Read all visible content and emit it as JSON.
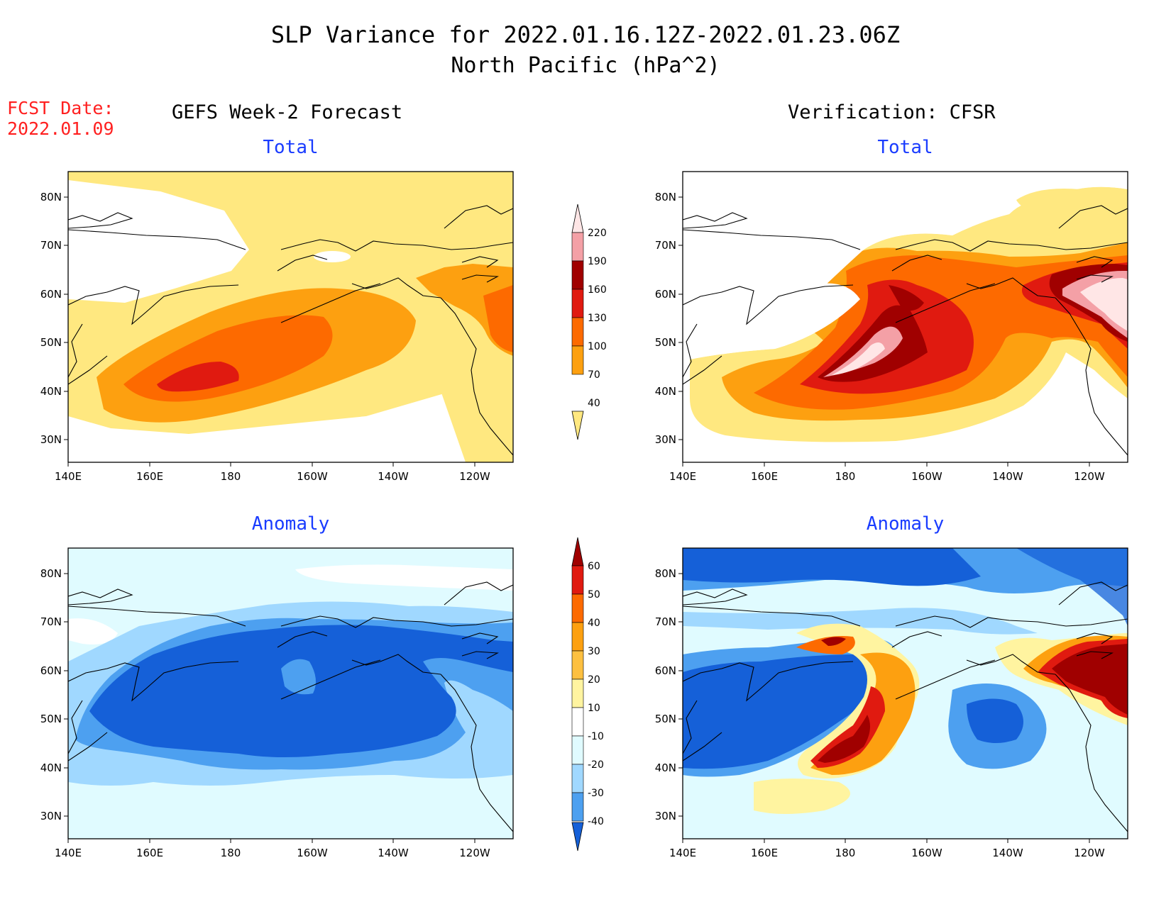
{
  "title": {
    "line1": "SLP Variance for 2022.01.16.12Z-2022.01.23.06Z",
    "line2": "North Pacific (hPa^2)"
  },
  "fcst_date": {
    "label": "FCST Date:",
    "value": "2022.01.09"
  },
  "columns": {
    "left": "GEFS Week-2 Forecast",
    "right": "Verification: CFSR"
  },
  "panel_titles": {
    "total": "Total",
    "anomaly": "Anomaly"
  },
  "axes": {
    "x_labels": [
      "140E",
      "160E",
      "180",
      "160W",
      "140W",
      "120W"
    ],
    "y_labels": [
      "80N",
      "70N",
      "60N",
      "50N",
      "40N",
      "30N"
    ]
  },
  "colorbars": {
    "total": {
      "levels": [
        "220",
        "190",
        "160",
        "130",
        "100",
        "70",
        "40"
      ],
      "colors": [
        "#ffe6e6",
        "#f4a0a6",
        "#a00000",
        "#e01a10",
        "#fd6a00",
        "#fda010",
        "#ffe880"
      ]
    },
    "anomaly": {
      "levels": [
        "60",
        "50",
        "40",
        "30",
        "20",
        "10",
        "-10",
        "-20",
        "-30",
        "-40"
      ],
      "colors": [
        "#a00000",
        "#e01a10",
        "#fd6a00",
        "#fda010",
        "#fdc040",
        "#fff4a0",
        "#ffffff",
        "#e0fbff",
        "#a0d8ff",
        "#4da0f0",
        "#1560d8"
      ]
    }
  },
  "colors": {
    "title_blue": "#1a3cff",
    "fcst_red": "#ff2020"
  }
}
